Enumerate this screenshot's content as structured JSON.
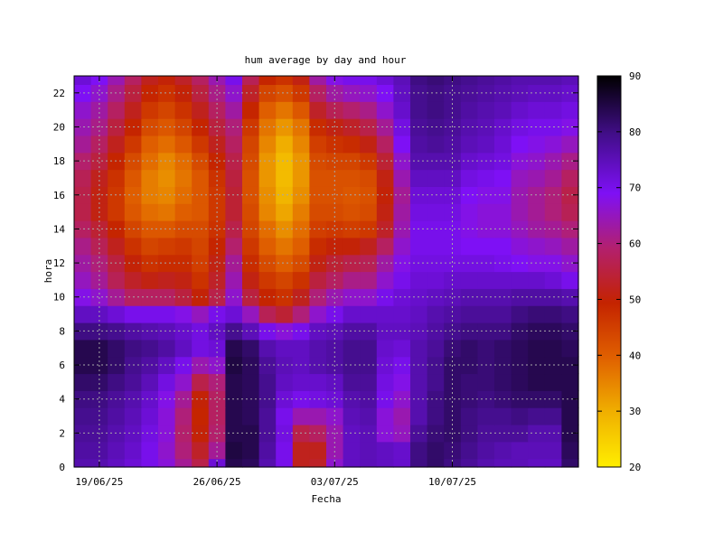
{
  "chart_data": {
    "type": "heatmap",
    "title": "hum average by day and hour",
    "xlabel": "Fecha",
    "ylabel": "hora",
    "x_tick_labels": [
      "19/06/25",
      "26/06/25",
      "03/07/25",
      "10/07/25"
    ],
    "x_tick_dates": [
      "2025-06-19",
      "2025-06-26",
      "2025-07-03",
      "2025-07-10"
    ],
    "x": [
      "2025-06-18",
      "2025-06-19",
      "2025-06-20",
      "2025-06-21",
      "2025-06-22",
      "2025-06-23",
      "2025-06-24",
      "2025-06-25",
      "2025-06-26",
      "2025-06-27",
      "2025-06-28",
      "2025-06-29",
      "2025-06-30",
      "2025-07-01",
      "2025-07-02",
      "2025-07-03",
      "2025-07-04",
      "2025-07-05",
      "2025-07-06",
      "2025-07-07",
      "2025-07-08",
      "2025-07-09",
      "2025-07-10",
      "2025-07-11",
      "2025-07-12",
      "2025-07-13",
      "2025-07-14",
      "2025-07-15",
      "2025-07-16",
      "2025-07-17"
    ],
    "y": [
      0,
      1,
      2,
      3,
      4,
      5,
      6,
      7,
      8,
      9,
      10,
      11,
      12,
      13,
      14,
      15,
      16,
      17,
      18,
      19,
      20,
      21,
      22,
      23
    ],
    "y_ticks": [
      0,
      2,
      4,
      6,
      8,
      10,
      12,
      14,
      16,
      18,
      20,
      22
    ],
    "ylim": [
      0,
      23
    ],
    "colorbar": {
      "min": 20,
      "max": 90,
      "ticks": [
        20,
        30,
        40,
        50,
        60,
        70,
        80,
        90
      ]
    },
    "grid": true,
    "z": [
      [
        76,
        76,
        74,
        72,
        70,
        67,
        62,
        56,
        72,
        84,
        83,
        76,
        70,
        52,
        53,
        66,
        74,
        75,
        74,
        73,
        80,
        82,
        80,
        78,
        76,
        75,
        75,
        74,
        74,
        82
      ],
      [
        77,
        77,
        75,
        73,
        70,
        66,
        60,
        53,
        62,
        85,
        84,
        77,
        70,
        52,
        52,
        64,
        74,
        75,
        74,
        73,
        80,
        82,
        81,
        79,
        77,
        76,
        75,
        75,
        75,
        83
      ],
      [
        78,
        78,
        76,
        74,
        71,
        67,
        59,
        50,
        59,
        84,
        84,
        78,
        71,
        56,
        58,
        64,
        74,
        75,
        67,
        65,
        78,
        81,
        82,
        80,
        78,
        78,
        78,
        76,
        76,
        84
      ],
      [
        79,
        79,
        77,
        75,
        72,
        67,
        60,
        49,
        58,
        84,
        83,
        78,
        70,
        64,
        64,
        66,
        75,
        76,
        67,
        64,
        76,
        80,
        82,
        80,
        79,
        79,
        80,
        79,
        79,
        84
      ],
      [
        80,
        80,
        78,
        76,
        73,
        68,
        62,
        50,
        58,
        84,
        83,
        79,
        72,
        70,
        71,
        72,
        76,
        77,
        70,
        66,
        76,
        80,
        82,
        81,
        80,
        81,
        82,
        82,
        82,
        84
      ],
      [
        82,
        82,
        80,
        78,
        75,
        71,
        66,
        56,
        60,
        84,
        83,
        79,
        74,
        73,
        73,
        74,
        78,
        78,
        71,
        68,
        76,
        79,
        82,
        81,
        81,
        82,
        83,
        84,
        84,
        84
      ],
      [
        84,
        84,
        82,
        79,
        77,
        74,
        70,
        64,
        66,
        85,
        83,
        78,
        75,
        74,
        76,
        77,
        79,
        79,
        72,
        70,
        76,
        79,
        82,
        82,
        81,
        82,
        83,
        84,
        84,
        84
      ],
      [
        84,
        84,
        82,
        80,
        79,
        77,
        74,
        71,
        72,
        84,
        82,
        76,
        74,
        74,
        76,
        77,
        79,
        79,
        73,
        72,
        76,
        78,
        81,
        82,
        81,
        82,
        83,
        84,
        84,
        83
      ],
      [
        80,
        80,
        79,
        77,
        76,
        75,
        73,
        71,
        74,
        79,
        75,
        70,
        67,
        70,
        74,
        75,
        77,
        77,
        74,
        74,
        75,
        77,
        79,
        80,
        80,
        80,
        82,
        83,
        83,
        82
      ],
      [
        74,
        74,
        72,
        70,
        70,
        70,
        68,
        65,
        70,
        72,
        65,
        57,
        54,
        60,
        66,
        70,
        73,
        73,
        73,
        73,
        74,
        76,
        77,
        78,
        78,
        78,
        80,
        81,
        81,
        80
      ],
      [
        68,
        66,
        62,
        58,
        58,
        58,
        55,
        50,
        56,
        66,
        55,
        49,
        47,
        52,
        60,
        64,
        66,
        66,
        70,
        72,
        73,
        74,
        75,
        76,
        76,
        76,
        77,
        77,
        77,
        76
      ],
      [
        65,
        62,
        57,
        53,
        51,
        52,
        51,
        47,
        53,
        64,
        51,
        46,
        44,
        47,
        55,
        58,
        61,
        61,
        66,
        70,
        72,
        72,
        73,
        73,
        73,
        73,
        73,
        73,
        72,
        70
      ],
      [
        63,
        60,
        55,
        50,
        47,
        48,
        48,
        45,
        51,
        62,
        48,
        43,
        40,
        43,
        51,
        54,
        56,
        57,
        63,
        68,
        71,
        71,
        71,
        71,
        71,
        70,
        69,
        68,
        68,
        66
      ],
      [
        61,
        57,
        52,
        47,
        44,
        45,
        46,
        44,
        49,
        59,
        46,
        40,
        37,
        40,
        48,
        50,
        50,
        52,
        58,
        66,
        70,
        70,
        70,
        69,
        69,
        69,
        67,
        66,
        65,
        63
      ],
      [
        58,
        54,
        49,
        44,
        41,
        41,
        43,
        43,
        47,
        56,
        44,
        38,
        34,
        38,
        45,
        46,
        45,
        46,
        53,
        64,
        70,
        70,
        70,
        68,
        67,
        67,
        65,
        63,
        62,
        60
      ],
      [
        56,
        51,
        46,
        41,
        38,
        37,
        40,
        41,
        46,
        54,
        43,
        35,
        31,
        36,
        43,
        43,
        42,
        43,
        51,
        63,
        71,
        71,
        71,
        68,
        67,
        67,
        64,
        62,
        60,
        57
      ],
      [
        56,
        51,
        46,
        40,
        36,
        35,
        38,
        41,
        46,
        54,
        42,
        34,
        29,
        34,
        42,
        42,
        41,
        42,
        50,
        62,
        72,
        72,
        72,
        69,
        68,
        68,
        64,
        62,
        60,
        56
      ],
      [
        57,
        52,
        47,
        41,
        36,
        34,
        37,
        41,
        47,
        55,
        42,
        33,
        28,
        33,
        42,
        42,
        42,
        43,
        51,
        64,
        74,
        74,
        74,
        71,
        70,
        69,
        65,
        64,
        62,
        58
      ],
      [
        59,
        55,
        49,
        43,
        38,
        35,
        38,
        43,
        49,
        56,
        43,
        33,
        28,
        33,
        43,
        44,
        44,
        46,
        54,
        66,
        76,
        76,
        76,
        73,
        72,
        71,
        67,
        66,
        64,
        61
      ],
      [
        62,
        58,
        52,
        46,
        40,
        38,
        41,
        46,
        52,
        58,
        44,
        35,
        30,
        35,
        45,
        47,
        48,
        51,
        58,
        69,
        77,
        78,
        77,
        75,
        74,
        72,
        69,
        68,
        67,
        65
      ],
      [
        64,
        61,
        55,
        49,
        43,
        41,
        44,
        49,
        55,
        60,
        46,
        37,
        33,
        37,
        48,
        51,
        53,
        56,
        62,
        71,
        78,
        79,
        78,
        76,
        75,
        73,
        71,
        70,
        70,
        68
      ],
      [
        66,
        63,
        58,
        52,
        46,
        44,
        47,
        52,
        58,
        63,
        49,
        40,
        37,
        41,
        53,
        57,
        59,
        61,
        66,
        73,
        79,
        80,
        79,
        77,
        76,
        75,
        73,
        72,
        72,
        71
      ],
      [
        69,
        66,
        61,
        55,
        49,
        47,
        50,
        55,
        61,
        66,
        53,
        44,
        42,
        46,
        58,
        63,
        65,
        66,
        69,
        74,
        79,
        80,
        79,
        78,
        77,
        76,
        75,
        74,
        74,
        73
      ],
      [
        72,
        69,
        64,
        58,
        52,
        50,
        53,
        58,
        64,
        70,
        57,
        49,
        47,
        51,
        63,
        68,
        70,
        70,
        72,
        75,
        80,
        81,
        80,
        79,
        78,
        77,
        76,
        76,
        76,
        75
      ]
    ]
  }
}
